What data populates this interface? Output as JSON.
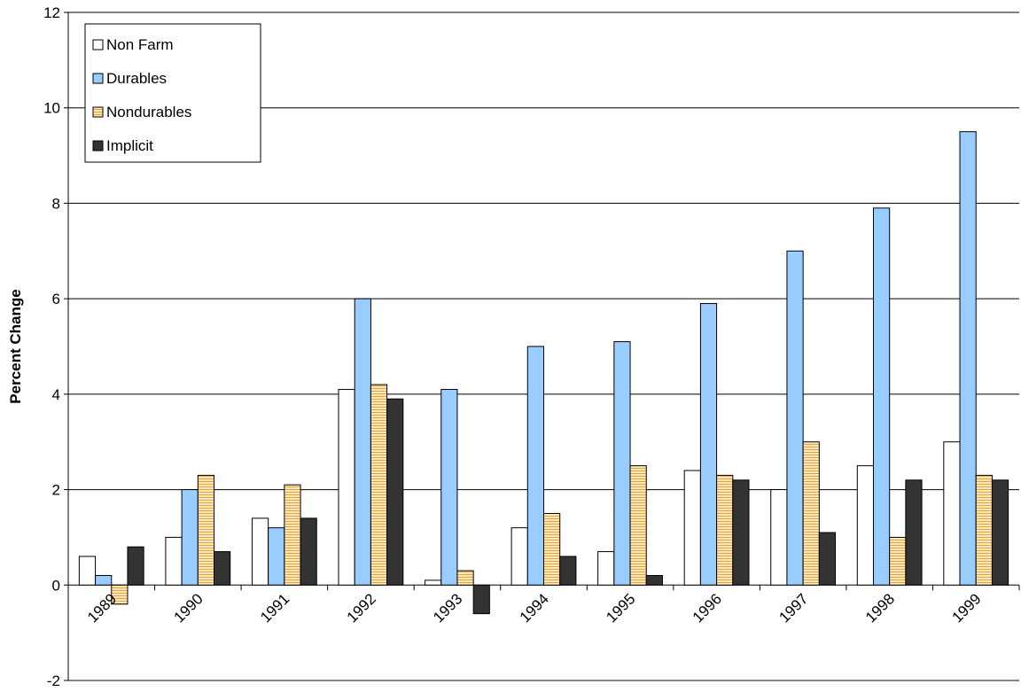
{
  "chart_data": {
    "type": "bar",
    "title": "",
    "xlabel": "",
    "ylabel": "Percent Change",
    "ylim": [
      -2,
      12
    ],
    "yticks": [
      -2,
      0,
      2,
      4,
      6,
      8,
      10,
      12
    ],
    "grid": true,
    "legend_position": "top-left",
    "categories": [
      "1989",
      "1990",
      "1991",
      "1992",
      "1993",
      "1994",
      "1995",
      "1996",
      "1997",
      "1998",
      "1999"
    ],
    "series": [
      {
        "name": "Non Farm",
        "color": "#ffffff",
        "pattern": "none",
        "values": [
          0.6,
          1.0,
          1.4,
          4.1,
          0.1,
          1.2,
          0.7,
          2.4,
          2.0,
          2.5,
          3.0
        ]
      },
      {
        "name": "Durables",
        "color": "#99ccff",
        "pattern": "none",
        "values": [
          0.2,
          2.0,
          1.2,
          6.0,
          4.1,
          5.0,
          5.1,
          5.9,
          7.0,
          7.9,
          9.5
        ]
      },
      {
        "name": "Nondurables",
        "color": "#ffe0a0",
        "pattern": "horizontal-lines",
        "values": [
          -0.4,
          2.3,
          2.1,
          4.2,
          0.3,
          1.5,
          2.5,
          2.3,
          3.0,
          1.0,
          2.3
        ]
      },
      {
        "name": "Implicit",
        "color": "#333333",
        "pattern": "none",
        "values": [
          0.8,
          0.7,
          1.4,
          3.9,
          -0.6,
          0.6,
          0.2,
          2.2,
          1.1,
          2.2,
          2.2
        ]
      }
    ]
  }
}
